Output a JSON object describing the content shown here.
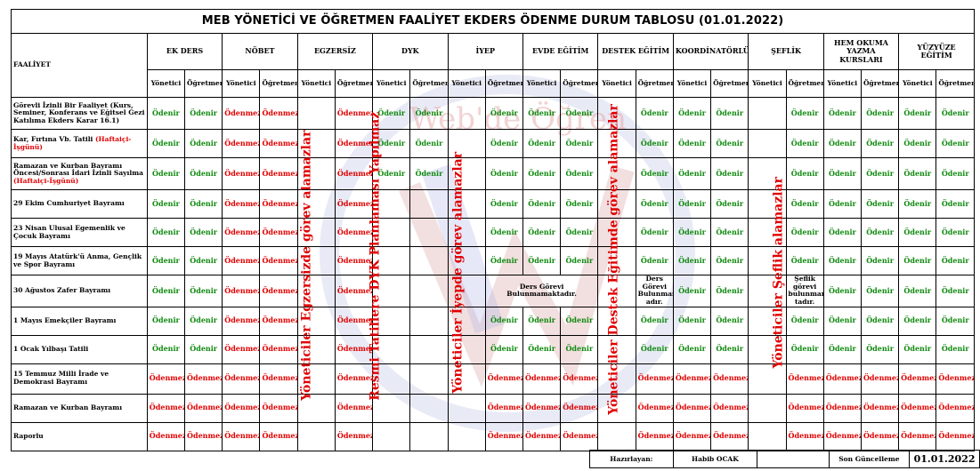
{
  "title": "MEB YÖNETİCİ VE ÖĞRETMEN FAALİYET EKDERS ÖDENME DURUM  TABLOSU (01.01.2022)",
  "activity_header": "FAALİYET",
  "columns": [
    "EK DERS",
    "NÖBET",
    "EGZERSİZ",
    "DYK",
    "İYEP",
    "EVDE EĞİTİM",
    "DESTEK EĞİTİM",
    "KOORDİNATÖRLÜK",
    "ŞEFLİK",
    "HEM OKUMA YAZMA KURSLARI",
    "YÜZYÜZE EĞİTİM"
  ],
  "sub_yonetici": "Yönetici",
  "sub_ogretmen": "Öğretmen",
  "status": {
    "odenir": "Ödenir",
    "odenmez": "Ödenmez"
  },
  "rows": [
    {
      "label": "Görevli İzinli Bir Faaliyet (Kurs, Seminer, Konferans ve Eğitsel Gezi Katılıma Ekders Karar 16.1)",
      "note": ""
    },
    {
      "label": "Kar, Fırtına Vb. Tatili ",
      "note": "(Haftaiçi-İşgünü)"
    },
    {
      "label": "Ramazan ve Kurban Bayramı Öncesi/Sonrası İdari İzinli Sayılma ",
      "note": "(Haftaiçi-İşgünü)"
    },
    {
      "label": "29 Ekim Cumhuriyet Bayramı",
      "note": ""
    },
    {
      "label": "23 Nisan Ulusal Egemenlik ve Çocuk Bayramı",
      "note": ""
    },
    {
      "label": "19 Mayıs Atatürk'ü Anma, Gençlik ve Spor Bayramı",
      "note": ""
    },
    {
      "label": "30 Ağustos Zafer Bayramı",
      "note": ""
    },
    {
      "label": "1 Mayıs Emekçiler Bayramı",
      "note": ""
    },
    {
      "label": "1 Ocak Yılbaşı Tatili",
      "note": ""
    },
    {
      "label": "15 Temmuz Milli İrade ve Demokrasi Bayramı",
      "note": ""
    },
    {
      "label": "Ramazan ve Kurban Bayramı",
      "note": ""
    },
    {
      "label": "Raporlu",
      "note": ""
    }
  ],
  "vertical_notes": {
    "egzersiz": "Yöneticiler Egzersizde görev alamazlar",
    "dyk": "Resmi Tatillere DYK Planlaması Yapılmaz",
    "iyep": "Yöneticiler İyepde görev alamazlar",
    "destek": "Yöneticiler Destek Eğitimde görev alamazlar",
    "seflik": "Yöneticiler Şeflik alamazlar"
  },
  "cell_notes": {
    "iyep_evde_30": "Ders Görevi Bulunmamaktadır.",
    "destek_30": "Ders Görevi Bulunmamakt adır.",
    "seflik_30": "Şeflik görevi bulunmamak tadır."
  },
  "watermark": "Web'de Öğren",
  "footer": {
    "prepared_label": "Hazırlayan:",
    "prepared_name": "Habib OCAK",
    "updated_label": "Son Güncelleme",
    "updated_date": "01.01.2022"
  }
}
